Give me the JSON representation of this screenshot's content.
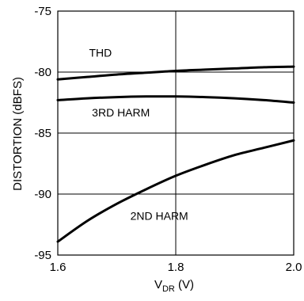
{
  "chart_data": {
    "type": "line",
    "xlabel": "V",
    "xlabel_subscript": "DR",
    "xlabel_suffix": " (V)",
    "ylabel": "DISTORTION (dBFS)",
    "xlim": [
      1.6,
      2.0
    ],
    "ylim": [
      -95,
      -75
    ],
    "x_ticks": [
      1.6,
      1.8,
      2.0
    ],
    "x_tick_labels": [
      "1.6",
      "1.8",
      "2.0"
    ],
    "y_ticks": [
      -75,
      -80,
      -85,
      -90,
      -95
    ],
    "y_tick_labels": [
      "-75",
      "-80",
      "-85",
      "-90",
      "-95"
    ],
    "grid": true,
    "series": [
      {
        "name": "THD",
        "x": [
          1.6,
          1.65,
          1.7,
          1.75,
          1.8,
          1.85,
          1.9,
          1.95,
          2.0
        ],
        "values": [
          -80.6,
          -80.4,
          -80.2,
          -80.05,
          -79.9,
          -79.8,
          -79.7,
          -79.6,
          -79.55
        ]
      },
      {
        "name": "3RD HARM",
        "x": [
          1.6,
          1.65,
          1.7,
          1.75,
          1.8,
          1.85,
          1.9,
          1.95,
          2.0
        ],
        "values": [
          -82.3,
          -82.15,
          -82.05,
          -82.0,
          -82.0,
          -82.05,
          -82.15,
          -82.3,
          -82.5
        ]
      },
      {
        "name": "2ND HARM",
        "x": [
          1.6,
          1.65,
          1.7,
          1.75,
          1.8,
          1.85,
          1.9,
          1.95,
          2.0
        ],
        "values": [
          -93.9,
          -92.2,
          -90.8,
          -89.6,
          -88.5,
          -87.6,
          -86.8,
          -86.2,
          -85.6
        ]
      }
    ]
  }
}
